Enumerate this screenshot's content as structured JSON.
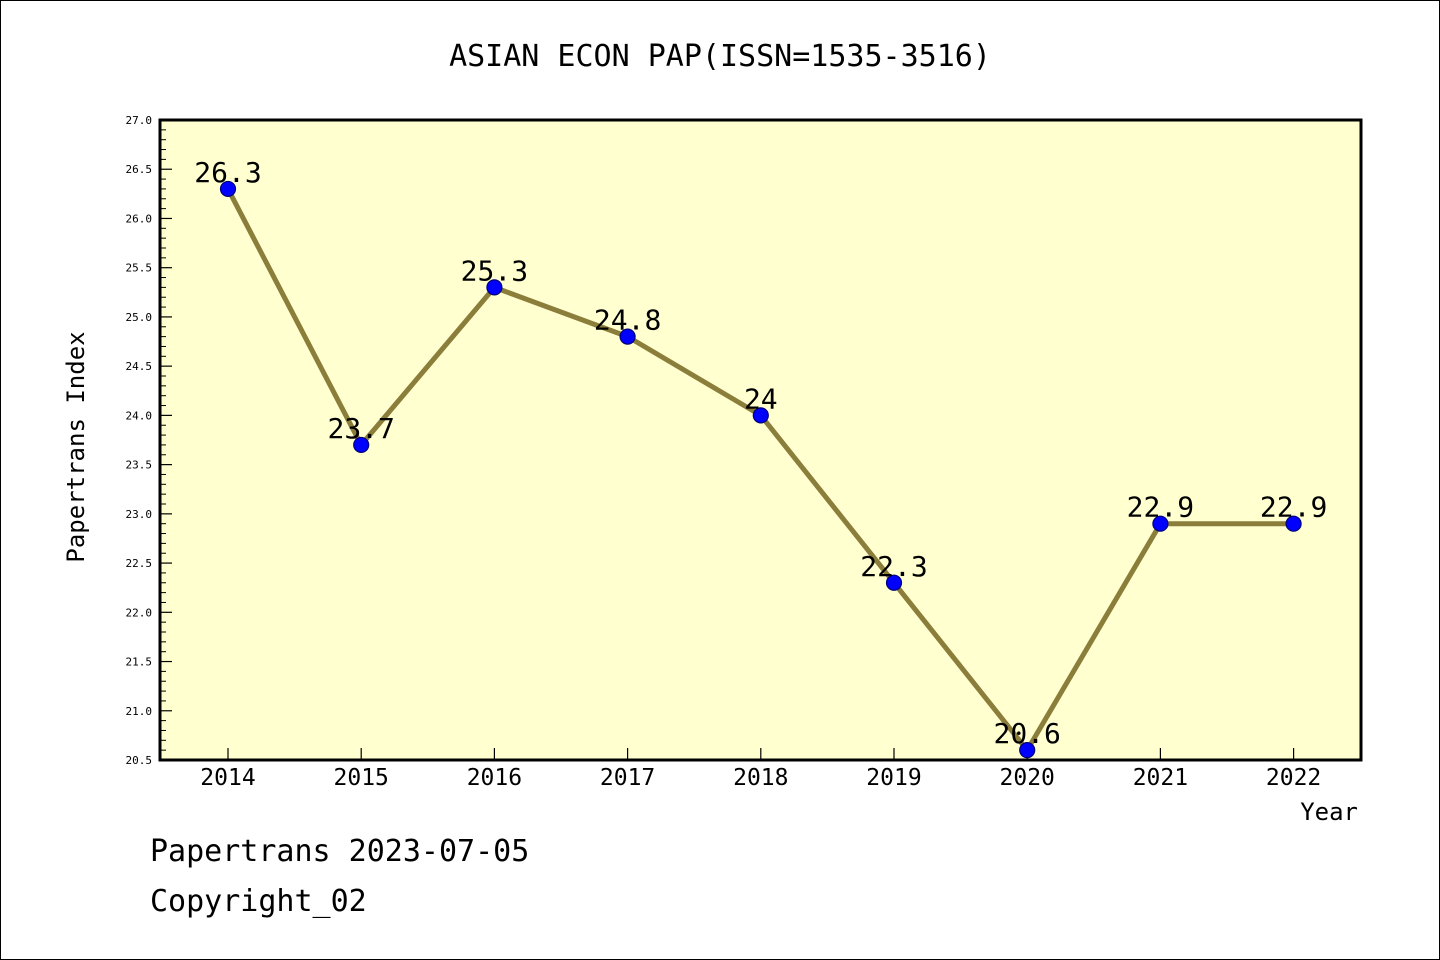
{
  "chart_data": {
    "type": "line",
    "title": "ASIAN ECON PAP(ISSN=1535-3516)",
    "xlabel": "Year",
    "ylabel": "Papertrans Index",
    "categories": [
      "2014",
      "2015",
      "2016",
      "2017",
      "2018",
      "2019",
      "2020",
      "2021",
      "2022"
    ],
    "values": [
      26.3,
      23.7,
      25.3,
      24.8,
      24.0,
      22.3,
      20.6,
      22.9,
      22.9
    ],
    "data_labels": [
      "26.3",
      "23.7",
      "25.3",
      "24.8",
      "24",
      "22.3",
      "20.6",
      "22.9",
      "22.9"
    ],
    "ylim": [
      20.5,
      27.0
    ],
    "yticks": [
      "20.5",
      "21.0",
      "21.5",
      "22.0",
      "22.5",
      "23.0",
      "23.5",
      "24.0",
      "24.5",
      "25.0",
      "25.5",
      "26.0",
      "26.5",
      "27.0"
    ],
    "grid": false,
    "legend": "none",
    "colors": {
      "plot_background": "#ffffd0",
      "line": "#8b7d3a",
      "marker": "#0000ff"
    }
  },
  "footer": {
    "line1": "Papertrans 2023-07-05",
    "line2": "Copyright_02"
  }
}
